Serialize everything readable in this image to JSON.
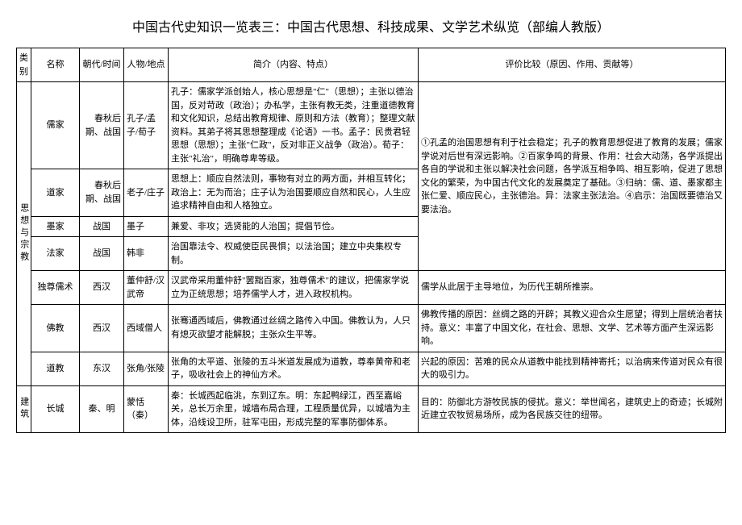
{
  "title": "中国古代史知识一览表三：中国古代思想、科技成果、文学艺术纵览（部编人教版）",
  "headers": {
    "category": "类别",
    "name": "名称",
    "time": "朝代/时间",
    "person": "人物/地点",
    "intro": "简介（内容、特点）",
    "eval": "评价比较（原因、作用、贡献等）"
  },
  "cat1": "思想与宗教",
  "cat2": "建筑",
  "rows": {
    "rujia": {
      "name": "儒家",
      "time": "春秋后期、战国",
      "person": "孔子/孟子/荀子",
      "intro": "孔子：儒家学派创始人，核心思想是\"仁\"（思想）；主张以德治国，反对苛政（政治）；办私学，主张有教无类，注重道德教育和文化知识，总结出教育规律、原则和方法（教育）；整理文献资料。其弟子将其思想整理成《论语》一书。孟子：民贵君轻思想（思想）；主张\"仁政\"，反对非正义战争（政治）。荀子：主张\"礼治\"，明确尊卑等级。"
    },
    "daojia": {
      "name": "道家",
      "time": "春秋后期、战国",
      "person": "老子/庄子",
      "intro": "思想上：顺应自然法则，事物有对立的两方面，并相互转化；政治上：无为而治；庄子认为治国要顺应自然和民心，人生应追求精神自由和人格独立。"
    },
    "mojia": {
      "name": "墨家",
      "time": "战国",
      "person": "墨子",
      "intro": "兼爱、非攻；选贤能的人治国；提倡节俭。"
    },
    "fajia": {
      "name": "法家",
      "time": "战国",
      "person": "韩非",
      "intro": "治国靠法令、权威使臣民畏惧；以法治国；建立中央集权专制。"
    },
    "eval_schools": "①孔孟的治国思想有利于社会稳定；孔子的教育思想促进了教育的发展；儒家学说对后世有深远影响。②百家争鸣的背景、作用：社会大动荡，各学派提出各自的学说和主张以解决社会问题，各学派互相争鸣、相互影响，促进了思想文化的繁荣，为中国古代文化的发展奠定了基础。③归纳：儒、道、墨家都主张仁爱、顺应民心，主张德治。异：法家主张法治。④启示：治国既要德治又要法治。",
    "duzun": {
      "name": "独尊儒术",
      "time": "西汉",
      "person": "董仲舒/汉武帝",
      "intro": "汉武帝采用董仲舒\"罢黜百家，独尊儒术\"的建议，把儒家学说立为正统思想；培养儒学人才，进入政权机构。",
      "eval": "儒学从此居于主导地位，为历代王朝所推崇。"
    },
    "fojiao": {
      "name": "佛教",
      "time": "西汉",
      "person": "西域僧人",
      "intro": "张骞通西域后，佛教通过丝绸之路传入中国。佛教认为，人只有熄灭欲望才能解脱；主张众生平等。",
      "eval": "佛教传播的原因：丝绸之路的开辟；其教义迎合众生愿望；得到上层统治者扶持。意义：丰富了中国文化，在社会、思想、文学、艺术等方面产生深远影响。"
    },
    "daojiao": {
      "name": "道教",
      "time": "东汉",
      "person": "张角/张陵",
      "intro": "张角的太平道、张陵的五斗米道发展成为道教，尊奉黄帝和老子，吸收社会上的神仙方术。",
      "eval": "兴起的原因：苦难的民众从道教中能找到精神寄托；以治病来传道对民众有很大的吸引力。"
    },
    "changcheng": {
      "name": "长城",
      "time": "秦、明",
      "person": "蒙恬（秦）",
      "intro": "秦：长城西起临洮，东到辽东。明：东起鸭绿江，西至嘉峪关，总长万余里，城墙布局合理，工程质量优异，以城墙为主体，沿线设卫所，驻军屯田，形成完整的军事防御体系。",
      "eval": "目的：防御北方游牧民族的侵扰。意义：举世闻名，建筑史上的奇迹；长城附近建立农牧贸易场所，成为各民族交往的纽带。"
    }
  }
}
